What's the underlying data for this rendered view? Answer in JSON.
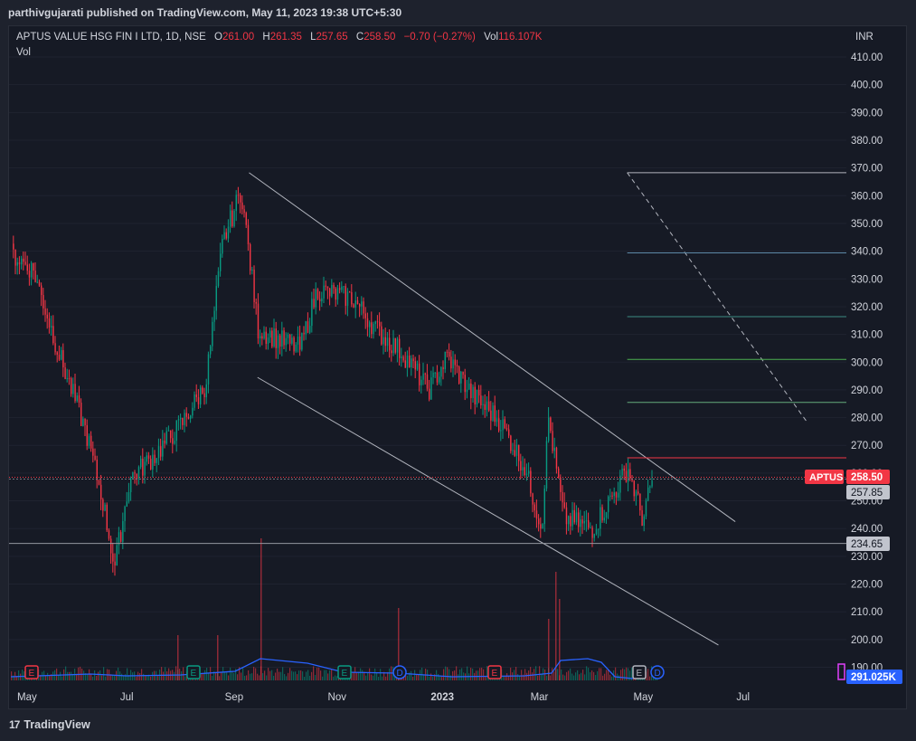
{
  "header": {
    "publisher_text": "parthivgujarati published on TradingView.com, May 11, 2023 19:38 UTC+5:30"
  },
  "legend": {
    "symbol": "APTUS VALUE HSG FIN I LTD, 1D, NSE",
    "open_label": "O",
    "open": "261.00",
    "high_label": "H",
    "high": "261.35",
    "low_label": "L",
    "low": "257.65",
    "close_label": "C",
    "close": "258.50",
    "change": "−0.70 (−0.27%)",
    "vol_label": "Vol",
    "vol": "116.107K",
    "vol_pane_label": "Vol"
  },
  "price_axis": {
    "currency": "INR",
    "ticks": [
      "410.00",
      "400.00",
      "390.00",
      "380.00",
      "370.00",
      "360.00",
      "350.00",
      "340.00",
      "330.00",
      "320.00",
      "310.00",
      "300.00",
      "290.00",
      "280.00",
      "270.00",
      "260.00",
      "250.00",
      "240.00",
      "230.00",
      "220.00",
      "210.00",
      "200.00",
      "190.00"
    ],
    "last_price_symbol": "APTUS",
    "last_price": "258.50",
    "level_1": "257.85",
    "level_2": "234.65",
    "volume_label": "291.025K"
  },
  "time_axis": {
    "labels": [
      "May",
      "Jul",
      "Sep",
      "Nov",
      "2023",
      "Mar",
      "May",
      "Jul"
    ]
  },
  "events": [
    {
      "type": "E",
      "kind": "earnings"
    },
    {
      "type": "E",
      "kind": "earnings"
    },
    {
      "type": "E",
      "kind": "earnings"
    },
    {
      "type": "D",
      "kind": "dividend"
    },
    {
      "type": "E",
      "kind": "earnings"
    },
    {
      "type": "E",
      "kind": "earnings"
    },
    {
      "type": "D",
      "kind": "dividend"
    }
  ],
  "footer": {
    "brand": "TradingView",
    "logo_text": "17"
  },
  "colors": {
    "up": "#089981",
    "down": "#f23645",
    "background": "#161a25",
    "volume_ma": "#2962ff",
    "line": "#b2b5be"
  },
  "chart_data": {
    "type": "candlestick",
    "symbol": "APTUS",
    "exchange": "NSE",
    "interval": "1D",
    "ylim": [
      185,
      415
    ],
    "x_range": [
      "2022-04-20",
      "2023-07-31"
    ],
    "close_series": [
      {
        "date": "2022-04-20",
        "close": 340
      },
      {
        "date": "2022-05-05",
        "close": 333
      },
      {
        "date": "2022-05-20",
        "close": 303
      },
      {
        "date": "2022-06-05",
        "close": 275
      },
      {
        "date": "2022-06-15",
        "close": 250
      },
      {
        "date": "2022-06-22",
        "close": 226
      },
      {
        "date": "2022-07-01",
        "close": 258
      },
      {
        "date": "2022-07-15",
        "close": 266
      },
      {
        "date": "2022-08-01",
        "close": 278
      },
      {
        "date": "2022-08-15",
        "close": 292
      },
      {
        "date": "2022-08-25",
        "close": 343
      },
      {
        "date": "2022-09-05",
        "close": 362
      },
      {
        "date": "2022-09-15",
        "close": 312
      },
      {
        "date": "2022-10-01",
        "close": 307
      },
      {
        "date": "2022-10-10",
        "close": 305
      },
      {
        "date": "2022-10-20",
        "close": 326
      },
      {
        "date": "2022-11-10",
        "close": 323
      },
      {
        "date": "2022-11-25",
        "close": 311
      },
      {
        "date": "2022-12-10",
        "close": 303
      },
      {
        "date": "2022-12-25",
        "close": 290
      },
      {
        "date": "2023-01-05",
        "close": 302
      },
      {
        "date": "2023-01-20",
        "close": 288
      },
      {
        "date": "2023-02-05",
        "close": 279
      },
      {
        "date": "2023-02-20",
        "close": 262
      },
      {
        "date": "2023-03-02",
        "close": 240
      },
      {
        "date": "2023-03-06",
        "close": 280
      },
      {
        "date": "2023-03-15",
        "close": 244
      },
      {
        "date": "2023-04-01",
        "close": 240
      },
      {
        "date": "2023-04-15",
        "close": 254
      },
      {
        "date": "2023-04-22",
        "close": 262
      },
      {
        "date": "2023-05-01",
        "close": 243
      },
      {
        "date": "2023-05-08",
        "close": 262
      },
      {
        "date": "2023-05-11",
        "close": 258.5
      }
    ],
    "horizontal_levels": [
      234.65,
      257.85
    ],
    "fib_levels": [
      368.3,
      339.4,
      316.4,
      301.0,
      285.5,
      265.5
    ]
  }
}
